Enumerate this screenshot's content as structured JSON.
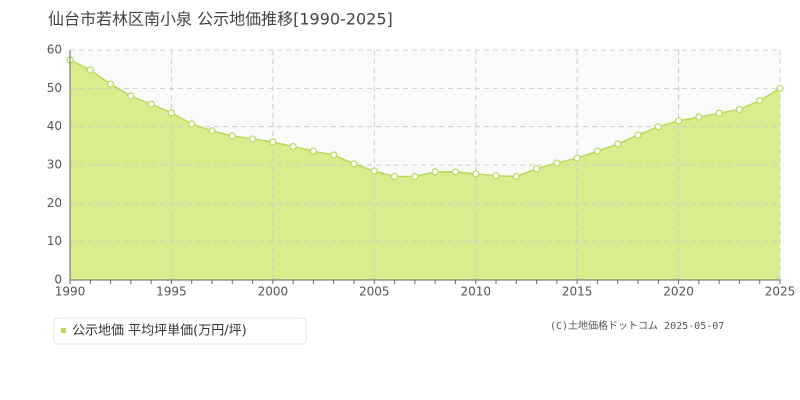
{
  "chart_data": {
    "type": "area",
    "title": "仙台市若林区南小泉 公示地価推移[1990-2025]",
    "x": [
      1990,
      1991,
      1992,
      1993,
      1994,
      1995,
      1996,
      1997,
      1998,
      1999,
      2000,
      2001,
      2002,
      2003,
      2004,
      2005,
      2006,
      2007,
      2008,
      2009,
      2010,
      2011,
      2012,
      2013,
      2014,
      2015,
      2016,
      2017,
      2018,
      2019,
      2020,
      2021,
      2022,
      2023,
      2024,
      2025
    ],
    "series": [
      {
        "name": "公示地価 平均坪単価(万円/坪)",
        "color": "#b9d95c",
        "fill": "#d9ed8e",
        "values": [
          57.4,
          54.8,
          51.1,
          48.0,
          45.9,
          43.6,
          40.7,
          38.9,
          37.6,
          36.8,
          36.0,
          34.8,
          33.6,
          32.6,
          30.3,
          28.4,
          27.0,
          27.0,
          28.2,
          28.2,
          27.7,
          27.2,
          27.0,
          29.0,
          30.5,
          31.8,
          33.6,
          35.5,
          37.8,
          40.0,
          41.5,
          42.5,
          43.5,
          44.5,
          46.8,
          50.0
        ]
      }
    ],
    "xlim": [
      1990,
      2025
    ],
    "xticks": [
      1990,
      1995,
      2000,
      2005,
      2010,
      2015,
      2020,
      2025
    ],
    "ylim": [
      0,
      60
    ],
    "yticks": [
      0,
      10,
      20,
      30,
      40,
      50,
      60
    ],
    "grid": true,
    "source": "(C)土地価格ドットコム 2025-05-07"
  }
}
